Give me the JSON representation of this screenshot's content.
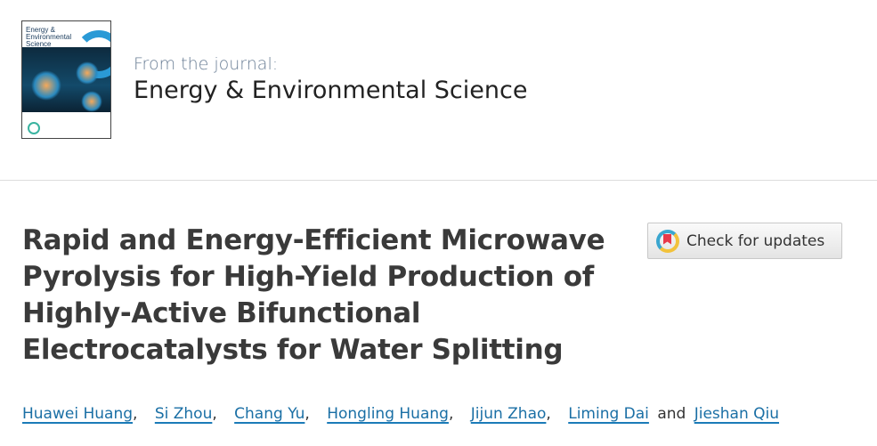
{
  "journal": {
    "cover_title": "Energy & Environmental Science",
    "from_label": "From the journal:",
    "name": "Energy & Environmental Science"
  },
  "article": {
    "title": "Rapid and Energy-Efficient Microwave Pyrolysis for High-Yield Production of Highly-Active Bifunctional Electrocatalysts for Water Splitting",
    "check_updates_label": "Check for updates",
    "authors": [
      "Huawei Huang",
      "Si Zhou",
      "Chang Yu",
      "Hongling Huang",
      "Jijun Zhao",
      "Liming Dai",
      "Jieshan Qiu"
    ],
    "authors_sep": ",",
    "authors_and": "and"
  },
  "colors": {
    "link": "#1a6fa5",
    "title": "#3a3a3a",
    "journal_from": "#6b7f96"
  }
}
